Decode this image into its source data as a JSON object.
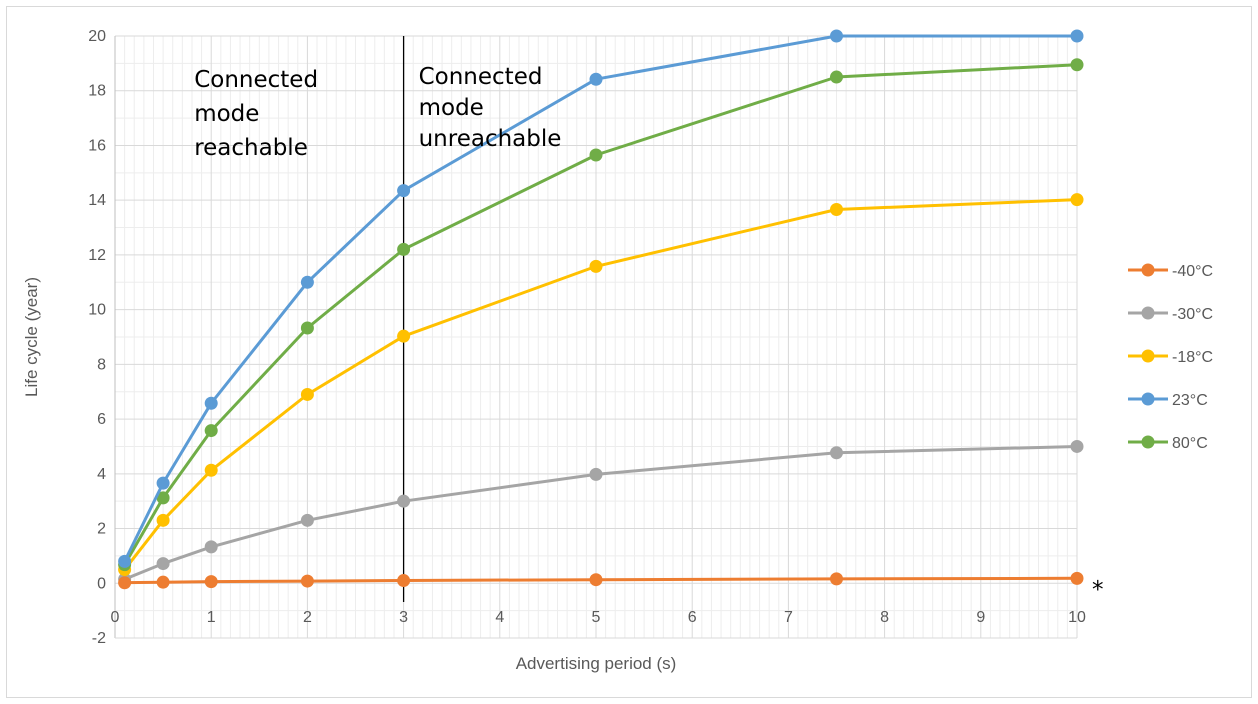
{
  "chart_data": {
    "type": "line",
    "title": "",
    "xlabel": "Advertising period (s)",
    "ylabel": "Life cycle (year)",
    "xlim": [
      0,
      10
    ],
    "ylim": [
      -2,
      20
    ],
    "x_ticks": [
      0,
      1,
      2,
      3,
      4,
      5,
      6,
      7,
      8,
      9,
      10
    ],
    "y_ticks": [
      -2,
      0,
      2,
      4,
      6,
      8,
      10,
      12,
      14,
      16,
      18,
      20
    ],
    "grid": true,
    "legend": "right",
    "x": [
      0.1,
      0.5,
      1,
      2,
      3,
      5,
      7.5,
      10
    ],
    "series": [
      {
        "name": "-40°C",
        "color": "#ed7d31",
        "values": [
          0.02,
          0.04,
          0.06,
          0.08,
          0.1,
          0.13,
          0.16,
          0.18
        ]
      },
      {
        "name": "-30°C",
        "color": "#a5a5a5",
        "values": [
          0.15,
          0.72,
          1.33,
          2.3,
          3.0,
          3.98,
          4.77,
          5.0
        ]
      },
      {
        "name": "-18°C",
        "color": "#ffc000",
        "values": [
          0.5,
          2.3,
          4.13,
          6.9,
          9.03,
          11.58,
          13.66,
          14.02
        ]
      },
      {
        "name": "23°C",
        "color": "#5b9bd5",
        "values": [
          0.8,
          3.66,
          6.58,
          11.0,
          14.35,
          18.42,
          20.0,
          20.0
        ]
      },
      {
        "name": "80°C",
        "color": "#70ad47",
        "values": [
          0.68,
          3.12,
          5.58,
          9.33,
          12.2,
          15.65,
          18.5,
          18.95
        ]
      }
    ],
    "divider_x": 3,
    "annotations": [
      {
        "text": "Connected\nmode\nreachable",
        "anchor_x": 1,
        "anchor_y": 20
      },
      {
        "text": "Connected\nmode\nunreachable",
        "anchor_x": 3,
        "anchor_y": 20
      },
      {
        "text": "*",
        "anchor_x": 10,
        "anchor_y": 0
      }
    ]
  }
}
